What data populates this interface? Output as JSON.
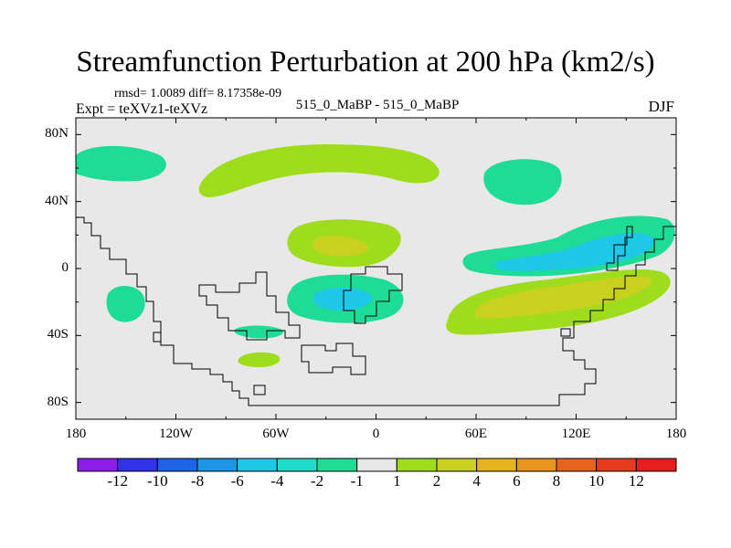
{
  "title": "Streamfunction Perturbation at 200 hPa (km2/s)",
  "stats_line": "rmsd= 1.0089 diff= 8.17358e-09",
  "experiment_label": "Expt = teXVz1-teXVz",
  "comparison_label": "515_0_MaBP - 515_0_MaBP",
  "season": "DJF",
  "map": {
    "lat_ticks": [
      "80N",
      "40N",
      "0",
      "40S",
      "80S"
    ],
    "lat_values": [
      80,
      40,
      0,
      -40,
      -80
    ],
    "lon_ticks": [
      "180",
      "120W",
      "60W",
      "0",
      "60E",
      "120E",
      "180"
    ],
    "lon_values": [
      -180,
      -120,
      -60,
      0,
      60,
      120,
      180
    ],
    "lat_range": [
      -90,
      90
    ],
    "lon_range": [
      -180,
      180
    ],
    "background_color": "#e8e8e8"
  },
  "colorbar": {
    "labels": [
      "-12",
      "-10",
      "-8",
      "-6",
      "-4",
      "-2",
      "-1",
      "1",
      "2",
      "4",
      "6",
      "8",
      "10",
      "12"
    ],
    "colors": [
      "#8a1ee6",
      "#3232e6",
      "#1e64e6",
      "#1e96e6",
      "#1ec8e6",
      "#1edcc8",
      "#1edc96",
      "#e8e8e8",
      "#a0dc1e",
      "#c8d21e",
      "#e6b41e",
      "#e6961e",
      "#e6641e",
      "#e63c1e",
      "#e61e1e"
    ]
  },
  "chart_data": {
    "type": "map-contour",
    "title": "Streamfunction Perturbation at 200 hPa (km2/s)",
    "units": "km2/s",
    "rmsd": 1.0089,
    "diff": 8.17358e-09,
    "season": "DJF",
    "features": [
      {
        "name": "north-pacific-negative",
        "sign": "negative",
        "level": "-1 to -2",
        "lon": -160,
        "lat": 65
      },
      {
        "name": "north-atlantic-positive",
        "sign": "positive",
        "level": "1 to 2",
        "lon": -60,
        "lat": 60
      },
      {
        "name": "siberia-negative",
        "sign": "negative",
        "level": "-1 to -2",
        "lon": 75,
        "lat": 55
      },
      {
        "name": "africa-north-positive",
        "sign": "positive",
        "level": "2 to 4",
        "lon": -20,
        "lat": 15
      },
      {
        "name": "atlantic-south-negative",
        "sign": "negative",
        "level": "-2 to -4",
        "lon": -20,
        "lat": -15
      },
      {
        "name": "indian-ocean-negative",
        "sign": "negative",
        "level": "-2 to -4",
        "lon": 110,
        "lat": 10
      },
      {
        "name": "indian-ocean-positive",
        "sign": "positive",
        "level": "2 to 4",
        "lon": 100,
        "lat": -20
      },
      {
        "name": "south-pacific-negative",
        "sign": "negative",
        "level": "-1 to -2",
        "lon": -150,
        "lat": -25
      },
      {
        "name": "southern-ocean-positive",
        "sign": "positive",
        "level": "1 to 2",
        "lon": -70,
        "lat": -55
      }
    ]
  }
}
